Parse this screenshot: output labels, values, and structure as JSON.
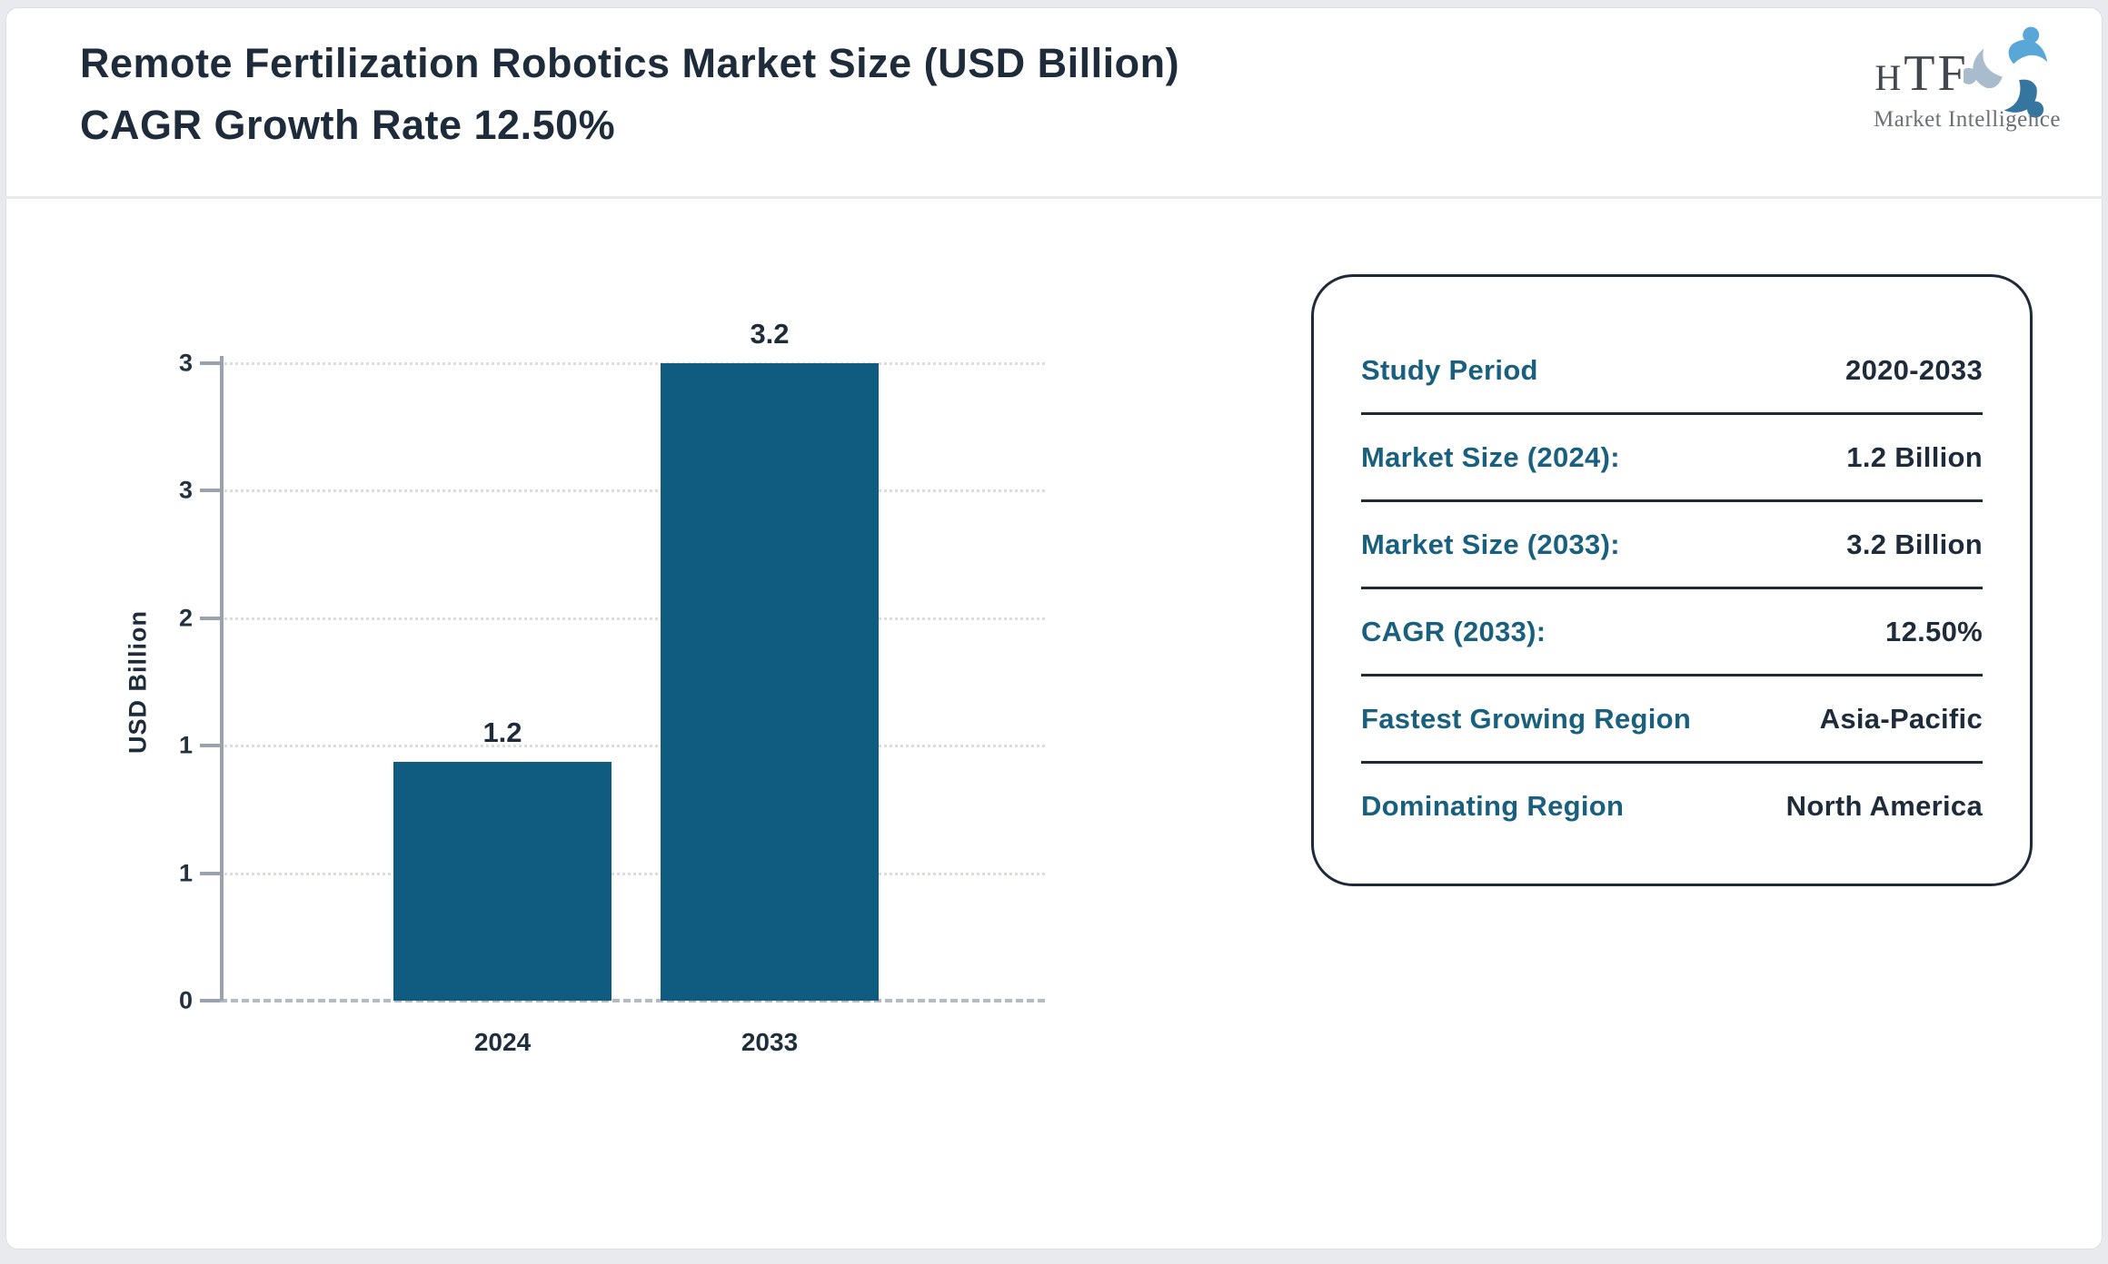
{
  "page": {
    "title": "Remote Fertilization Robotics Market Size (USD Billion) CAGR Growth Rate 12.50%"
  },
  "logo": {
    "text": "HTF",
    "subtext": "Market Intelligence",
    "swirl_colors": [
      "#58a7d7",
      "#36759f",
      "#a9bccd"
    ]
  },
  "chart_data": {
    "type": "bar",
    "title": "",
    "categories": [
      "2024",
      "2033"
    ],
    "values": [
      1.2,
      3.2
    ],
    "bar_labels": [
      "1.2",
      "3.2"
    ],
    "xlabel": "",
    "ylabel": "USD Billion",
    "ylim": [
      0,
      3.2
    ],
    "yticks": [
      {
        "value": 0,
        "label": "0"
      },
      {
        "value": 0.64,
        "label": "1"
      },
      {
        "value": 1.28,
        "label": "1"
      },
      {
        "value": 1.92,
        "label": "2"
      },
      {
        "value": 2.56,
        "label": "3"
      },
      {
        "value": 3.2,
        "label": "3"
      }
    ],
    "grid": "horizontal-dotted",
    "legend": "none",
    "bar_color": "#0f5c80"
  },
  "info_card": {
    "rows": [
      {
        "label": "Study Period",
        "value": "2020-2033"
      },
      {
        "label": "Market Size (2024):",
        "value": "1.2 Billion"
      },
      {
        "label": "Market Size (2033):",
        "value": "3.2 Billion"
      },
      {
        "label": "CAGR (2033):",
        "value": "12.50%"
      },
      {
        "label": "Fastest Growing Region",
        "value": "Asia-Pacific"
      },
      {
        "label": "Dominating Region",
        "value": "North America"
      }
    ]
  },
  "colors": {
    "accent_teal": "#19607e",
    "bar": "#0f5c80",
    "navy_text": "#1e2b3a",
    "axis_gray": "#9aa3ad",
    "gridline": "#dadce0",
    "page_border": "#e8eaed"
  }
}
